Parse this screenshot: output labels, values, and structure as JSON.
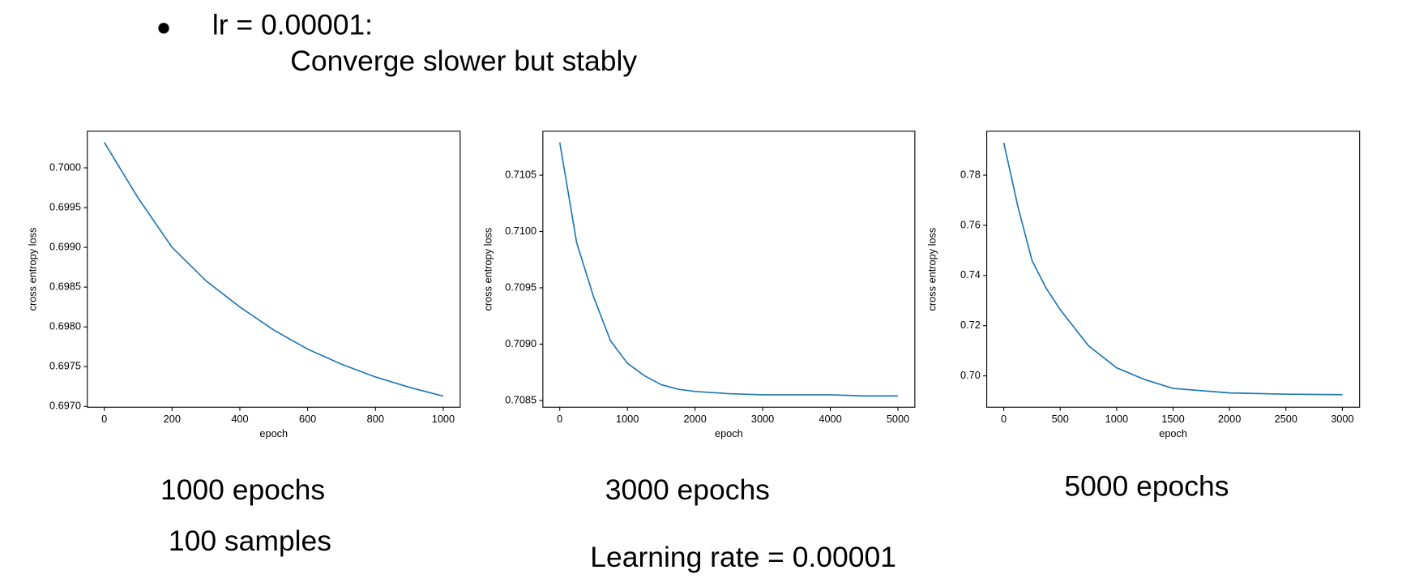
{
  "bullet": {
    "text": "lr = 0.00001:",
    "detail": "Converge slower but stably"
  },
  "captions": [
    "1000 epochs",
    "3000 epochs",
    "5000 epochs",
    "100 samples",
    "Learning rate = 0.00001"
  ],
  "chart_data": [
    {
      "type": "line",
      "xlabel": "epoch",
      "ylabel": "cross entropy loss",
      "color": "#1f77b4",
      "x": [
        0,
        100,
        200,
        300,
        400,
        500,
        600,
        700,
        800,
        900,
        1000
      ],
      "values": [
        0.70032,
        0.69962,
        0.699,
        0.69858,
        0.69825,
        0.69796,
        0.69772,
        0.69753,
        0.69737,
        0.69724,
        0.69713
      ],
      "xlim": [
        -50,
        1050
      ],
      "ylim": [
        0.69699,
        0.70046
      ],
      "xticks": [
        0,
        200,
        400,
        600,
        800,
        1000
      ],
      "yticks": [
        {
          "value": 0.697,
          "label": "0.6970"
        },
        0.6975,
        {
          "value": 0.698,
          "label": "0.6980"
        },
        0.6985,
        {
          "value": 0.699,
          "label": "0.6990"
        },
        0.6995,
        {
          "value": 0.7,
          "label": "0.7000"
        }
      ]
    },
    {
      "type": "line",
      "xlabel": "epoch",
      "ylabel": "cross entropy loss",
      "color": "#1f77b4",
      "x": [
        0,
        250,
        500,
        750,
        1000,
        1250,
        1500,
        1750,
        2000,
        2500,
        3000,
        3500,
        4000,
        4500,
        5000
      ],
      "values": [
        0.71079,
        0.7099,
        0.70942,
        0.70903,
        0.70883,
        0.70872,
        0.70864,
        0.7086,
        0.70858,
        0.70856,
        0.70855,
        0.70855,
        0.70855,
        0.70854,
        0.70854
      ],
      "xlim": [
        -250,
        5250
      ],
      "ylim": [
        0.70844,
        0.71089
      ],
      "xticks": [
        0,
        1000,
        2000,
        3000,
        4000,
        5000
      ],
      "yticks": [
        0.7085,
        {
          "value": 0.709,
          "label": "0.7090"
        },
        0.7095,
        {
          "value": 0.71,
          "label": "0.7100"
        },
        0.7105
      ]
    },
    {
      "type": "line",
      "xlabel": "epoch",
      "ylabel": "cross entropy loss",
      "color": "#1f77b4",
      "x": [
        0,
        125,
        250,
        375,
        500,
        750,
        1000,
        1250,
        1500,
        2000,
        2500,
        3000
      ],
      "values": [
        0.7929,
        0.7675,
        0.746,
        0.735,
        0.7264,
        0.712,
        0.7032,
        0.6985,
        0.695,
        0.6932,
        0.6927,
        0.6925
      ],
      "xlim": [
        -151,
        3153
      ],
      "ylim": [
        0.6875,
        0.7975
      ],
      "xticks": [
        0,
        500,
        1000,
        1500,
        2000,
        2500,
        3000
      ],
      "yticks": [
        {
          "value": 0.7,
          "label": "0.70"
        },
        0.72,
        0.74,
        0.76,
        0.78
      ]
    }
  ]
}
